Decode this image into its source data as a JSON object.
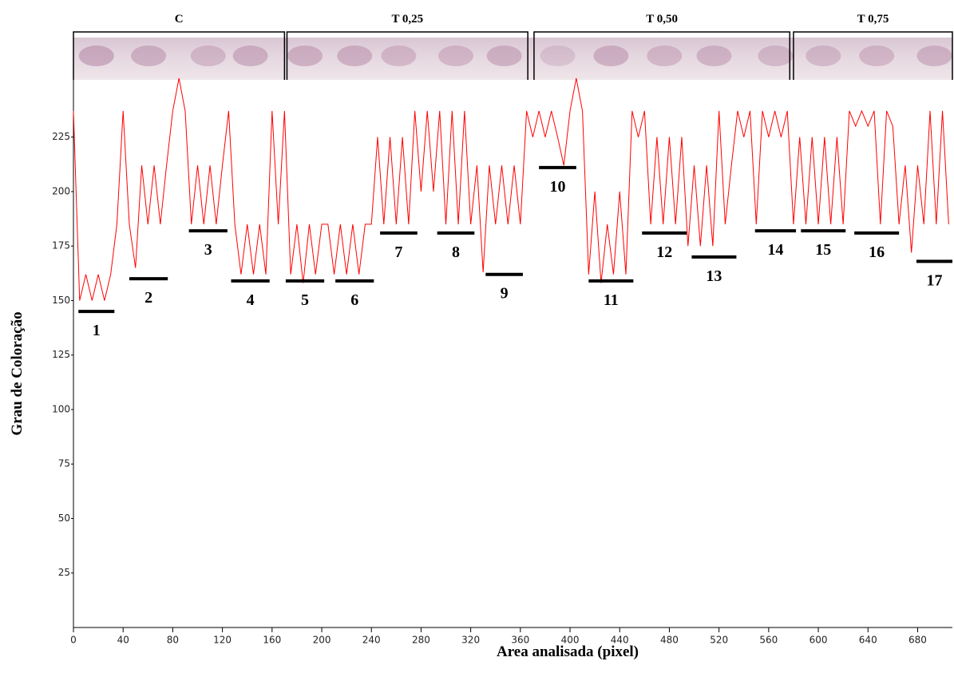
{
  "chart_data": {
    "type": "line",
    "x_label": "Area analisada (pixel)",
    "y_label": "Grau de Coloração",
    "xlim": [
      0,
      708
    ],
    "ylim": [
      0,
      252
    ],
    "xticks": [
      0,
      40,
      80,
      120,
      160,
      200,
      240,
      280,
      320,
      360,
      400,
      440,
      480,
      520,
      560,
      600,
      640,
      680
    ],
    "yticks": [
      25,
      50,
      75,
      100,
      125,
      150,
      175,
      200,
      225
    ],
    "x": [
      0,
      5,
      10,
      15,
      20,
      25,
      30,
      35,
      40,
      45,
      50,
      55,
      60,
      65,
      70,
      75,
      80,
      85,
      90,
      95,
      100,
      105,
      110,
      115,
      120,
      125,
      130,
      135,
      140,
      145,
      150,
      155,
      160,
      165,
      170,
      175,
      180,
      185,
      190,
      195,
      200,
      205,
      210,
      215,
      220,
      225,
      230,
      235,
      240,
      245,
      250,
      255,
      260,
      265,
      270,
      275,
      280,
      285,
      290,
      295,
      300,
      305,
      310,
      315,
      320,
      325,
      330,
      335,
      340,
      345,
      350,
      355,
      360,
      365,
      370,
      375,
      380,
      385,
      390,
      395,
      400,
      405,
      410,
      415,
      420,
      425,
      430,
      435,
      440,
      445,
      450,
      455,
      460,
      465,
      470,
      475,
      480,
      485,
      490,
      495,
      500,
      505,
      510,
      515,
      520,
      525,
      530,
      535,
      540,
      545,
      550,
      555,
      560,
      565,
      570,
      575,
      580,
      585,
      590,
      595,
      600,
      605,
      610,
      615,
      620,
      625,
      630,
      635,
      640,
      645,
      650,
      655,
      660,
      665,
      670,
      675,
      680,
      685,
      690,
      695,
      700,
      705
    ],
    "series": [
      {
        "color": "#ff0000",
        "values": [
          237,
          150,
          162,
          150,
          162,
          150,
          162,
          185,
          237,
          185,
          165,
          212,
          185,
          212,
          185,
          212,
          237,
          252,
          237,
          185,
          212,
          185,
          212,
          185,
          212,
          237,
          185,
          162,
          185,
          162,
          185,
          162,
          237,
          185,
          237,
          162,
          185,
          158,
          185,
          162,
          185,
          185,
          162,
          185,
          162,
          185,
          162,
          185,
          185,
          225,
          185,
          225,
          185,
          225,
          185,
          237,
          200,
          237,
          200,
          237,
          185,
          237,
          185,
          237,
          185,
          212,
          163,
          212,
          185,
          212,
          185,
          212,
          185,
          237,
          225,
          237,
          225,
          237,
          225,
          212,
          237,
          252,
          237,
          162,
          200,
          158,
          185,
          162,
          200,
          162,
          237,
          225,
          237,
          185,
          225,
          185,
          225,
          185,
          225,
          175,
          212,
          175,
          212,
          175,
          237,
          185,
          212,
          237,
          225,
          237,
          185,
          237,
          225,
          237,
          225,
          237,
          185,
          225,
          185,
          225,
          185,
          225,
          185,
          225,
          185,
          237,
          230,
          237,
          230,
          237,
          185,
          237,
          230,
          185,
          212,
          172,
          212,
          185,
          237,
          185,
          237,
          185
        ]
      }
    ],
    "bands": [
      {
        "label": "1",
        "value": 145,
        "x": [
          4,
          33
        ]
      },
      {
        "label": "2",
        "value": 160,
        "x": [
          45,
          76
        ]
      },
      {
        "label": "3",
        "value": 182,
        "x": [
          93,
          124
        ]
      },
      {
        "label": "4",
        "value": 159,
        "x": [
          127,
          158
        ]
      },
      {
        "label": "5",
        "value": 159,
        "x": [
          171,
          202
        ]
      },
      {
        "label": "6",
        "value": 159,
        "x": [
          211,
          242
        ]
      },
      {
        "label": "7",
        "value": 181,
        "x": [
          247,
          277
        ]
      },
      {
        "label": "8",
        "value": 181,
        "x": [
          293,
          323
        ]
      },
      {
        "label": "9",
        "value": 162,
        "x": [
          332,
          362
        ]
      },
      {
        "label": "10",
        "value": 211,
        "x": [
          375,
          405
        ]
      },
      {
        "label": "11",
        "value": 159,
        "x": [
          415,
          451
        ]
      },
      {
        "label": "12",
        "value": 181,
        "x": [
          458,
          494
        ]
      },
      {
        "label": "13",
        "value": 170,
        "x": [
          498,
          534
        ]
      },
      {
        "label": "14",
        "value": 182,
        "x": [
          549,
          582
        ]
      },
      {
        "label": "15",
        "value": 182,
        "x": [
          586,
          622
        ]
      },
      {
        "label": "16",
        "value": 181,
        "x": [
          629,
          665
        ]
      },
      {
        "label": "17",
        "value": 168,
        "x": [
          679,
          708
        ]
      }
    ],
    "groups": [
      {
        "label": "C",
        "x": [
          0,
          170
        ]
      },
      {
        "label": "T 0,25",
        "x": [
          172,
          366
        ]
      },
      {
        "label": "T 0,50",
        "x": [
          371,
          577
        ]
      },
      {
        "label": "T 0,75",
        "x": [
          580,
          708
        ]
      }
    ]
  }
}
